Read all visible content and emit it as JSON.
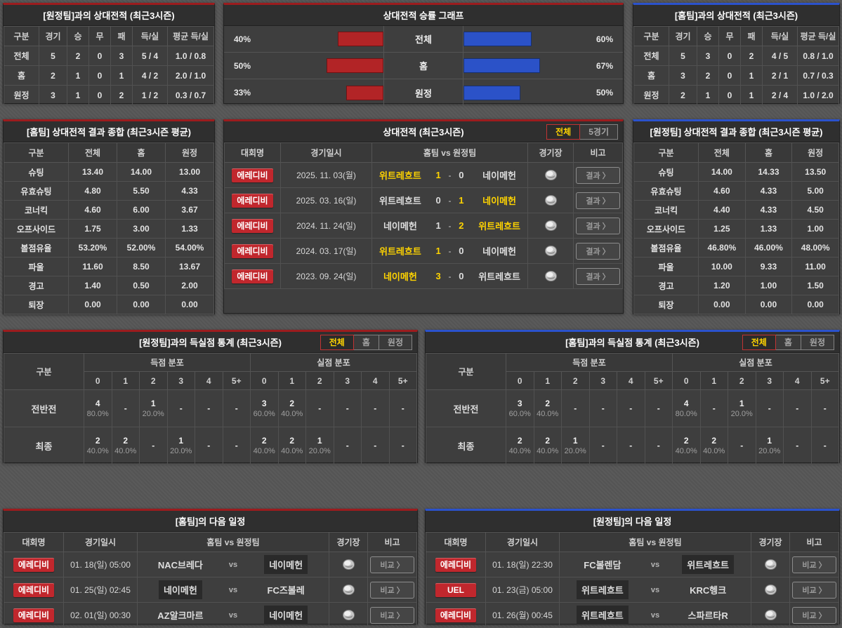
{
  "tl": {
    "title": "[원정팀]과의 상대전적 (최근3시즌)",
    "headers": [
      "구분",
      "경기",
      "승",
      "무",
      "패",
      "득/실",
      "평균 득/실"
    ],
    "rows": [
      {
        "label": "전체",
        "v": [
          "5",
          "2",
          "0",
          "3",
          "5 / 4",
          "1.0 / 0.8"
        ]
      },
      {
        "label": "홈",
        "v": [
          "2",
          "1",
          "0",
          "1",
          "4 / 2",
          "2.0 / 1.0"
        ]
      },
      {
        "label": "원정",
        "v": [
          "3",
          "1",
          "0",
          "2",
          "1 / 2",
          "0.3 / 0.7"
        ]
      }
    ]
  },
  "chart": {
    "title": "상대전적 승률 그래프",
    "type": "bar",
    "red_color": "#b22426",
    "blue_color": "#2b52c8",
    "rows": [
      {
        "label": "전체",
        "left_pct": 40,
        "left_label": "40%",
        "right_pct": 60,
        "right_label": "60%"
      },
      {
        "label": "홈",
        "left_pct": 50,
        "left_label": "50%",
        "right_pct": 67,
        "right_label": "67%"
      },
      {
        "label": "원정",
        "left_pct": 33,
        "left_label": "33%",
        "right_pct": 50,
        "right_label": "50%"
      }
    ]
  },
  "tr": {
    "title": "[홈팀]과의 상대전적 (최근3시즌)",
    "headers": [
      "구분",
      "경기",
      "승",
      "무",
      "패",
      "득/실",
      "평균 득/실"
    ],
    "rows": [
      {
        "label": "전체",
        "v": [
          "5",
          "3",
          "0",
          "2",
          "4 / 5",
          "0.8 / 1.0"
        ]
      },
      {
        "label": "홈",
        "v": [
          "3",
          "2",
          "0",
          "1",
          "2 / 1",
          "0.7 / 0.3"
        ]
      },
      {
        "label": "원정",
        "v": [
          "2",
          "1",
          "0",
          "1",
          "2 / 4",
          "1.0 / 2.0"
        ]
      }
    ]
  },
  "hs": {
    "title": "[홈팀] 상대전적 결과 종합 (최근3시즌 평균)",
    "headers": [
      "구분",
      "전체",
      "홈",
      "원정"
    ],
    "rows": [
      {
        "label": "슈팅",
        "v": [
          "13.40",
          "14.00",
          "13.00"
        ]
      },
      {
        "label": "유효슈팅",
        "v": [
          "4.80",
          "5.50",
          "4.33"
        ]
      },
      {
        "label": "코너킥",
        "v": [
          "4.60",
          "6.00",
          "3.67"
        ]
      },
      {
        "label": "오프사이드",
        "v": [
          "1.75",
          "3.00",
          "1.33"
        ]
      },
      {
        "label": "볼점유율",
        "v": [
          "53.20%",
          "52.00%",
          "54.00%"
        ]
      },
      {
        "label": "파울",
        "v": [
          "11.60",
          "8.50",
          "13.67"
        ]
      },
      {
        "label": "경고",
        "v": [
          "1.40",
          "0.50",
          "2.00"
        ]
      },
      {
        "label": "퇴장",
        "v": [
          "0.00",
          "0.00",
          "0.00"
        ]
      }
    ]
  },
  "aw": {
    "title": "[원정팀] 상대전적 결과 종합 (최근3시즌 평균)",
    "headers": [
      "구분",
      "전체",
      "홈",
      "원정"
    ],
    "rows": [
      {
        "label": "슈팅",
        "v": [
          "14.00",
          "14.33",
          "13.50"
        ]
      },
      {
        "label": "유효슈팅",
        "v": [
          "4.60",
          "4.33",
          "5.00"
        ]
      },
      {
        "label": "코너킥",
        "v": [
          "4.40",
          "4.33",
          "4.50"
        ]
      },
      {
        "label": "오프사이드",
        "v": [
          "1.25",
          "1.33",
          "1.00"
        ]
      },
      {
        "label": "볼점유율",
        "v": [
          "46.80%",
          "46.00%",
          "48.00%"
        ]
      },
      {
        "label": "파울",
        "v": [
          "10.00",
          "9.33",
          "11.00"
        ]
      },
      {
        "label": "경고",
        "v": [
          "1.20",
          "1.00",
          "1.50"
        ]
      },
      {
        "label": "퇴장",
        "v": [
          "0.00",
          "0.00",
          "0.00"
        ]
      }
    ]
  },
  "h2h": {
    "title": "상대전적 (최근3시즌)",
    "tabs": [
      "전체",
      "5경기"
    ],
    "headers": [
      "대회명",
      "경기일시",
      "홈팀  vs  원정팀",
      "경기장",
      "비고"
    ],
    "button": "결과 〉",
    "score_sep": "-",
    "rows": [
      {
        "league": "에레디비",
        "date": "2025. 11. 03(월)",
        "home": "위트레흐트",
        "hscore": "1",
        "ascore": "0",
        "away": "네이메헌",
        "winner": "home"
      },
      {
        "league": "에레디비",
        "date": "2025. 03. 16(일)",
        "home": "위트레흐트",
        "hscore": "0",
        "ascore": "1",
        "away": "네이메헌",
        "winner": "away"
      },
      {
        "league": "에레디비",
        "date": "2024. 11. 24(일)",
        "home": "네이메헌",
        "hscore": "1",
        "ascore": "2",
        "away": "위트레흐트",
        "winner": "away"
      },
      {
        "league": "에레디비",
        "date": "2024. 03. 17(일)",
        "home": "위트레흐트",
        "hscore": "1",
        "ascore": "0",
        "away": "네이메헌",
        "winner": "home"
      },
      {
        "league": "에레디비",
        "date": "2023. 09. 24(일)",
        "home": "네이메헌",
        "hscore": "3",
        "ascore": "0",
        "away": "위트레흐트",
        "winner": "home"
      }
    ]
  },
  "dl": {
    "title": "[원정팀]과의 득실점 통계 (최근3시즌)",
    "tabs": [
      "전체",
      "홈",
      "원정"
    ],
    "col_label": "구분",
    "g1": "득점 분포",
    "g2": "실점 분포",
    "cols": [
      "0",
      "1",
      "2",
      "3",
      "4",
      "5+"
    ],
    "rows": [
      {
        "label": "전반전",
        "score": [
          {
            "n": "4",
            "p": "80.0%"
          },
          {
            "n": "-",
            "p": ""
          },
          {
            "n": "1",
            "p": "20.0%"
          },
          {
            "n": "-",
            "p": ""
          },
          {
            "n": "-",
            "p": ""
          },
          {
            "n": "-",
            "p": ""
          }
        ],
        "concede": [
          {
            "n": "3",
            "p": "60.0%"
          },
          {
            "n": "2",
            "p": "40.0%"
          },
          {
            "n": "-",
            "p": ""
          },
          {
            "n": "-",
            "p": ""
          },
          {
            "n": "-",
            "p": ""
          },
          {
            "n": "-",
            "p": ""
          }
        ]
      },
      {
        "label": "최종",
        "score": [
          {
            "n": "2",
            "p": "40.0%"
          },
          {
            "n": "2",
            "p": "40.0%"
          },
          {
            "n": "-",
            "p": ""
          },
          {
            "n": "1",
            "p": "20.0%"
          },
          {
            "n": "-",
            "p": ""
          },
          {
            "n": "-",
            "p": ""
          }
        ],
        "concede": [
          {
            "n": "2",
            "p": "40.0%"
          },
          {
            "n": "2",
            "p": "40.0%"
          },
          {
            "n": "1",
            "p": "20.0%"
          },
          {
            "n": "-",
            "p": ""
          },
          {
            "n": "-",
            "p": ""
          },
          {
            "n": "-",
            "p": ""
          }
        ]
      }
    ]
  },
  "dr": {
    "title": "[홈팀]과의 득실점 통계 (최근3시즌)",
    "tabs": [
      "전체",
      "홈",
      "원정"
    ],
    "col_label": "구분",
    "g1": "득점 분포",
    "g2": "실점 분포",
    "cols": [
      "0",
      "1",
      "2",
      "3",
      "4",
      "5+"
    ],
    "rows": [
      {
        "label": "전반전",
        "score": [
          {
            "n": "3",
            "p": "60.0%"
          },
          {
            "n": "2",
            "p": "40.0%"
          },
          {
            "n": "-",
            "p": ""
          },
          {
            "n": "-",
            "p": ""
          },
          {
            "n": "-",
            "p": ""
          },
          {
            "n": "-",
            "p": ""
          }
        ],
        "concede": [
          {
            "n": "4",
            "p": "80.0%"
          },
          {
            "n": "-",
            "p": ""
          },
          {
            "n": "1",
            "p": "20.0%"
          },
          {
            "n": "-",
            "p": ""
          },
          {
            "n": "-",
            "p": ""
          },
          {
            "n": "-",
            "p": ""
          }
        ]
      },
      {
        "label": "최종",
        "score": [
          {
            "n": "2",
            "p": "40.0%"
          },
          {
            "n": "2",
            "p": "40.0%"
          },
          {
            "n": "1",
            "p": "20.0%"
          },
          {
            "n": "-",
            "p": ""
          },
          {
            "n": "-",
            "p": ""
          },
          {
            "n": "-",
            "p": ""
          }
        ],
        "concede": [
          {
            "n": "2",
            "p": "40.0%"
          },
          {
            "n": "2",
            "p": "40.0%"
          },
          {
            "n": "-",
            "p": ""
          },
          {
            "n": "1",
            "p": "20.0%"
          },
          {
            "n": "-",
            "p": ""
          },
          {
            "n": "-",
            "p": ""
          }
        ]
      }
    ]
  },
  "sl": {
    "title": "[홈팀]의 다음 일정",
    "headers": [
      "대회명",
      "경기일시",
      "홈팀  vs  원정팀",
      "경기장",
      "비고"
    ],
    "button": "비교 〉",
    "vs_label": "vs",
    "rows": [
      {
        "league": "에레디비",
        "date": "01. 18(일) 05:00",
        "home": "NAC브레다",
        "away": "네이메헌",
        "hl": "away"
      },
      {
        "league": "에레디비",
        "date": "01. 25(일) 02:45",
        "home": "네이메헌",
        "away": "FC즈볼레",
        "hl": "home"
      },
      {
        "league": "에레디비",
        "date": "02. 01(일) 00:30",
        "home": "AZ알크마르",
        "away": "네이메헌",
        "hl": "away"
      }
    ]
  },
  "sr": {
    "title": "[원정팀]의 다음 일정",
    "headers": [
      "대회명",
      "경기일시",
      "홈팀  vs  원정팀",
      "경기장",
      "비고"
    ],
    "button": "비교 〉",
    "vs_label": "vs",
    "rows": [
      {
        "league": "에레디비",
        "date": "01. 18(일) 22:30",
        "home": "FC볼렌담",
        "away": "위트레흐트",
        "hl": "away"
      },
      {
        "league": "UEL",
        "date": "01. 23(금) 05:00",
        "home": "위트레흐트",
        "away": "KRC헹크",
        "hl": "home"
      },
      {
        "league": "에레디비",
        "date": "01. 26(월) 00:45",
        "home": "위트레흐트",
        "away": "스파르타R",
        "hl": "home"
      }
    ]
  }
}
